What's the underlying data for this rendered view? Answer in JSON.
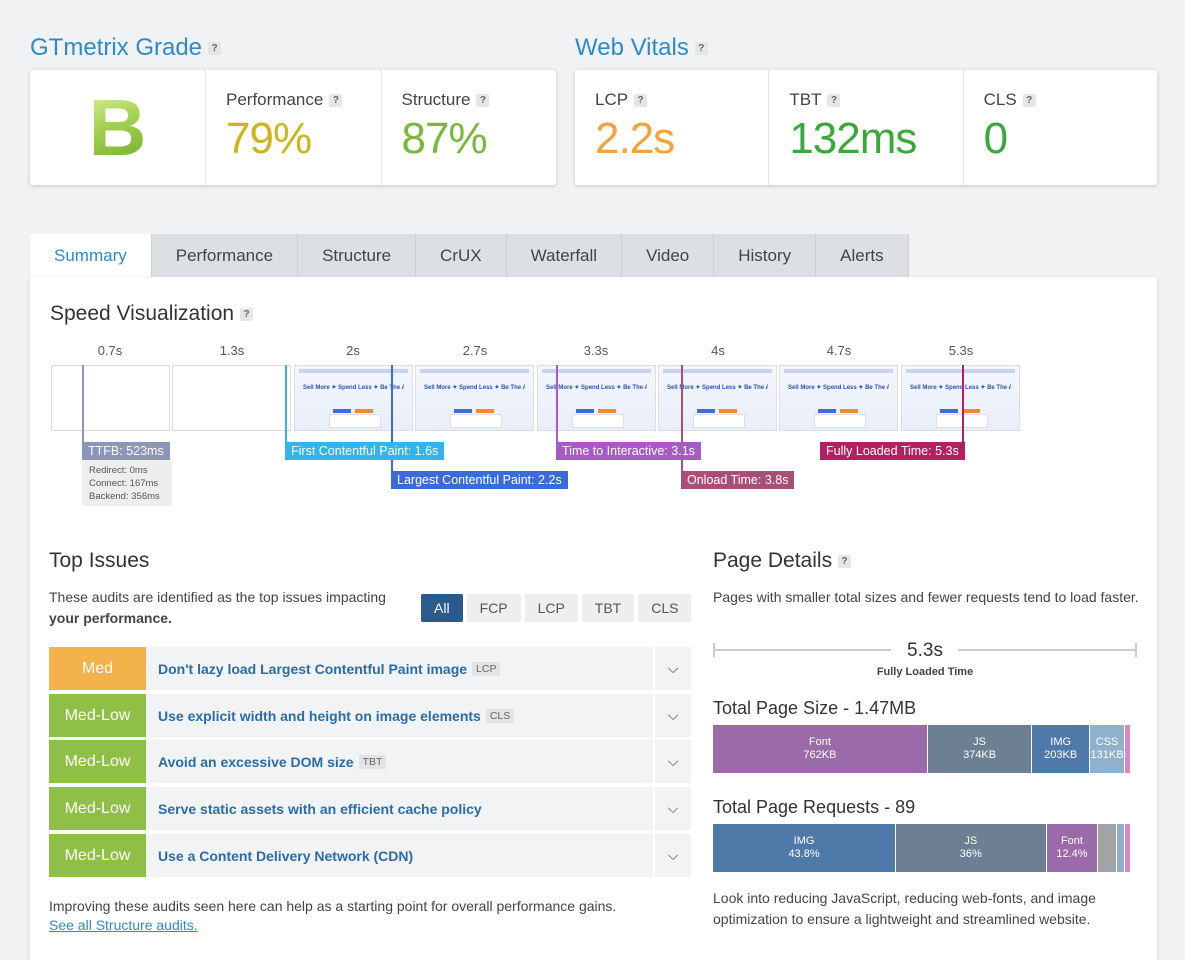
{
  "grade": {
    "title": "GTmetrix Grade",
    "letter": "B",
    "performance": {
      "label": "Performance",
      "value": "79%",
      "color": "#cfb51c"
    },
    "structure": {
      "label": "Structure",
      "value": "87%",
      "color": "#7ab83a"
    }
  },
  "vitals": {
    "title": "Web Vitals",
    "lcp": {
      "label": "LCP",
      "value": "2.2s",
      "color": "#f2a43a"
    },
    "tbt": {
      "label": "TBT",
      "value": "132ms",
      "color": "#3aa83a"
    },
    "cls": {
      "label": "CLS",
      "value": "0",
      "color": "#3aa83a"
    }
  },
  "help_mark": "?",
  "tabs": [
    "Summary",
    "Performance",
    "Structure",
    "CrUX",
    "Waterfall",
    "Video",
    "History",
    "Alerts"
  ],
  "speed": {
    "title": "Speed Visualization",
    "ticks": [
      "0.7s",
      "1.3s",
      "2s",
      "2.7s",
      "3.3s",
      "4s",
      "4.7s",
      "5.3s"
    ],
    "frame_headline": "Sell More ✦ Spend Less ✦ Be The Authority",
    "markers": {
      "ttfb": "TTFB: 523ms",
      "fcp": "First Contentful Paint: 1.6s",
      "lcp": "Largest Contentful Paint: 2.2s",
      "tti": "Time to Interactive: 3.1s",
      "onload": "Onload Time: 3.8s",
      "fully": "Fully Loaded Time: 5.3s"
    },
    "ttfb_details": {
      "redirect": "Redirect: 0ms",
      "connect": "Connect: 167ms",
      "backend": "Backend: 356ms"
    }
  },
  "issues": {
    "title": "Top Issues",
    "desc_pre": "These audits are identified as the top issues impacting ",
    "desc_bold": "your performance.",
    "filters": [
      "All",
      "FCP",
      "LCP",
      "TBT",
      "CLS"
    ],
    "items": [
      {
        "severity": "Med",
        "title": "Don't lazy load Largest Contentful Paint image",
        "tag": "LCP"
      },
      {
        "severity": "Med-Low",
        "title": "Use explicit width and height on image elements",
        "tag": "CLS"
      },
      {
        "severity": "Med-Low",
        "title": "Avoid an excessive DOM size",
        "tag": "TBT"
      },
      {
        "severity": "Med-Low",
        "title": "Serve static assets with an efficient cache policy",
        "tag": ""
      },
      {
        "severity": "Med-Low",
        "title": "Use a Content Delivery Network (CDN)",
        "tag": ""
      }
    ],
    "footer": "Improving these audits seen here can help as a starting point for overall performance gains.",
    "link": "See all Structure audits."
  },
  "details": {
    "title": "Page Details",
    "desc": "Pages with smaller total sizes and fewer requests tend to load faster.",
    "fully_loaded_value": "5.3s",
    "fully_loaded_label": "Fully Loaded Time",
    "size_title": "Total Page Size - 1.47MB",
    "size_segments": [
      {
        "name": "Font",
        "value": "762KB",
        "share": 51.4,
        "color": "#9b6aa8"
      },
      {
        "name": "JS",
        "value": "374KB",
        "share": 25.0,
        "color": "#6c7f93"
      },
      {
        "name": "IMG",
        "value": "203KB",
        "share": 13.8,
        "color": "#4e79a8"
      },
      {
        "name": "CSS",
        "value": "131KB",
        "share": 8.4,
        "color": "#8fb1cc"
      },
      {
        "name": "",
        "value": "",
        "share": 1.4,
        "color": "#d58ac4"
      }
    ],
    "requests_title": "Total Page Requests - 89",
    "request_segments": [
      {
        "name": "IMG",
        "value": "43.8%",
        "share": 43.8,
        "color": "#4e79a8"
      },
      {
        "name": "JS",
        "value": "36%",
        "share": 36.0,
        "color": "#6c7f93"
      },
      {
        "name": "Font",
        "value": "12.4%",
        "share": 12.4,
        "color": "#9b6aa8"
      },
      {
        "name": "",
        "value": "",
        "share": 4.5,
        "color": "#a3a3a3"
      },
      {
        "name": "",
        "value": "",
        "share": 1.8,
        "color": "#8fb1cc"
      },
      {
        "name": "",
        "value": "",
        "share": 1.5,
        "color": "#d58ac4"
      }
    ],
    "footer": "Look into reducing JavaScript, reducing web-fonts, and image optimization to ensure a lightweight and streamlined website."
  }
}
